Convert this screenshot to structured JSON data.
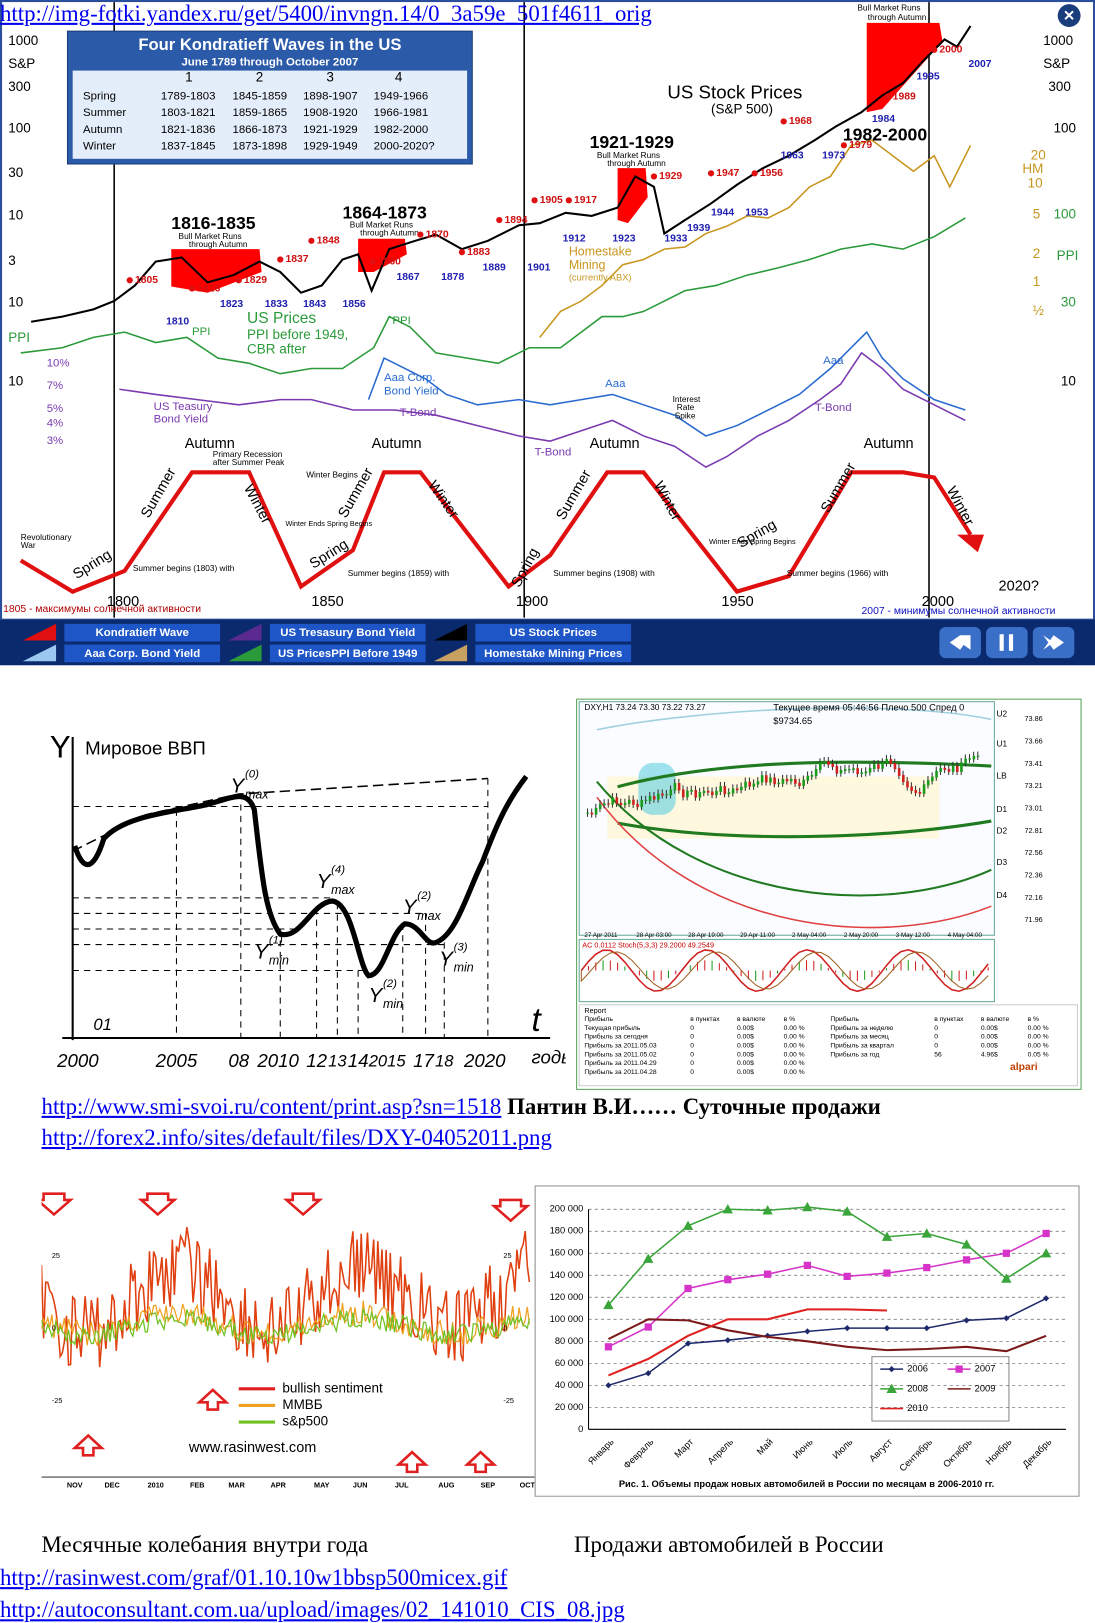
{
  "kondratieff": {
    "title": "Four Kondratieff Waves in the US",
    "subtitle": "June 1789 through October 2007",
    "columns": [
      "1",
      "2",
      "3",
      "4"
    ],
    "rows": [
      [
        "Spring",
        "1789-1803",
        "1845-1859",
        "1898-1907",
        "1949-1966"
      ],
      [
        "Summer",
        "1803-1821",
        "1859-1865",
        "1908-1920",
        "1966-1981"
      ],
      [
        "Autumn",
        "1821-1836",
        "1866-1873",
        "1921-1929",
        "1982-2000"
      ],
      [
        "Winter",
        "1837-1845",
        "1873-1898",
        "1929-1949",
        "2000-2020?"
      ]
    ],
    "labels": [
      "1000",
      "S&P",
      "300",
      "100",
      "30",
      "10",
      "3",
      "10",
      "PPI",
      "10",
      "10%",
      "7%",
      "5%",
      "4%",
      "3%",
      "1000",
      "S&P",
      "300",
      "100",
      "20",
      "HM",
      "10",
      "5",
      "100",
      "2",
      "PPI",
      "1",
      "½",
      "30",
      "10",
      "US Stock Prices",
      "(S&P 500)",
      "1816-1835",
      "1864-1873",
      "1921-1929",
      "1982-2000",
      "Bull Market Runs",
      "through Autumn",
      "Bull Market Runs",
      "through Autumn",
      "Bull Market Runs",
      "through Autumn",
      "Bull Market Runs",
      "through Autumn",
      "Homestake",
      "Mining",
      "(currently ABX)",
      "US Prices",
      "PPI before 1949,",
      "CBR after",
      "PPI",
      "PPI",
      "Aaa Corp.",
      "Bond Yield",
      "US Teasury",
      "Bond Yield",
      "T-Bond",
      "T-Bond",
      "T-Bond",
      "Aaa",
      "Aaa",
      "Interest",
      "Rate",
      "Spike",
      "Autumn",
      "Autumn",
      "Autumn",
      "Autumn",
      "Summer",
      "Summer",
      "Summer",
      "Summer",
      "Winter",
      "Winter",
      "Winter",
      "Winter",
      "Spring",
      "Spring",
      "Spring",
      "Spring",
      "Revolutionary",
      "War",
      "1800",
      "1850",
      "1900",
      "1950",
      "2000",
      "2020?",
      "1805 - максимумы солнечной активности",
      "2007 - минимумы солнечной активности",
      "Primary Recession",
      "after Summer Peak",
      "Winter Begins",
      "Summer begins (1803) with",
      "Summer begins (1859) with",
      "Summer begins (1908) with",
      "Summer begins (1966) with",
      "Winter Ends Spring Begins",
      "Winter Ends Spring Begins"
    ],
    "peak_years": [
      "1805",
      "1816",
      "1829",
      "1837",
      "1848",
      "1860",
      "1870",
      "1883",
      "1894",
      "1905",
      "1917",
      "1929",
      "1947",
      "1956",
      "1968",
      "1979",
      "1989",
      "2000"
    ],
    "trough_years": [
      "1810",
      "1823",
      "1833",
      "1843",
      "1856",
      "1867",
      "1878",
      "1889",
      "1901",
      "1912",
      "1923",
      "1933",
      "1939",
      "1944",
      "1953",
      "1963",
      "1973",
      "1984",
      "1995",
      "2007"
    ],
    "legend": [
      "Kondratieff Wave",
      "US Tresasury Bond Yield",
      "US Stock Prices",
      "Aaa Corp. Bond Yield",
      "US PricesPPI Before 1949",
      "Homestake Mining Prices"
    ]
  },
  "link_1": "http://img-fotki.yandex.ru/get/5400/invngn.14/0_3a59e_501f4611_orig",
  "gdp_chart": {
    "y_axis": "Y",
    "title": "Мировое ВВП",
    "t_axis": "t",
    "t_unit": "годы",
    "first": "01",
    "ticks": [
      "2000",
      "2005",
      "08",
      "2010",
      "12",
      "13",
      "14",
      "2015",
      "17",
      "18",
      "2020"
    ],
    "points": [
      {
        "main": "Y",
        "sub": "max",
        "sup": "(0)"
      },
      {
        "main": "Y",
        "sub": "max",
        "sup": "(4)"
      },
      {
        "main": "Y",
        "sub": "min",
        "sup": "(1)"
      },
      {
        "main": "Y",
        "sub": "min",
        "sup": "(2)"
      },
      {
        "main": "Y",
        "sub": "max",
        "sup": "(2)"
      },
      {
        "main": "Y",
        "sub": "min",
        "sup": "(3)"
      }
    ]
  },
  "forex": {
    "header": "DXY,H1 73.24 73.30 73.22 73.27",
    "status": "Текущее время 05:46:56 Плечо 500 Спред 0",
    "balance": "$9734.65",
    "prices": [
      "73.86",
      "73.66",
      "73.41",
      "73.21",
      "73.01",
      "72.81",
      "72.56",
      "72.36",
      "72.16",
      "71.96"
    ],
    "levels": [
      "U2",
      "U1",
      "LB",
      "D1",
      "D2",
      "D3",
      "D4"
    ],
    "indicator": "AC 0.0112 Stoch(5,3,3) 29.2000 49.2549",
    "times": [
      "27 Apr 2011",
      "28 Apr 03:00",
      "28 Apr 19:00",
      "29 Apr 11:00",
      "2 May 04:00",
      "2 May 20:00",
      "3 May 12:00",
      "4 May 04:00"
    ],
    "report_title": "Report",
    "report_left": [
      [
        "Прибыль",
        "в пунктах",
        "в валюте",
        "в %"
      ],
      [
        "Текущая прибыль",
        "0",
        "0.00$",
        "0.00 %"
      ],
      [
        "Прибыль за сегодня",
        "0",
        "0.00$",
        "0.00 %"
      ],
      [
        "Прибыль за 2011.05.03",
        "0",
        "0.00$",
        "0.00 %"
      ],
      [
        "Прибыль за 2011.05.02",
        "0",
        "0.00$",
        "0.00 %"
      ],
      [
        "Прибыль за 2011.04.29",
        "0",
        "0.00$",
        "0.00 %"
      ],
      [
        "Прибыль за 2011.04.28",
        "0",
        "0.00$",
        "0.00 %"
      ]
    ],
    "report_right": [
      [
        "Прибыль",
        "в пунктах",
        "в валюте",
        "в %"
      ],
      [
        "Прибыль за неделю",
        "0",
        "0.00$",
        "0.00 %"
      ],
      [
        "Прибыль за месяц",
        "0",
        "0.00$",
        "0.00 %"
      ],
      [
        "Прибыль за квартал",
        "0",
        "0.00$",
        "0.00 %"
      ],
      [
        "Прибыль за год",
        "56",
        "4.96$",
        "0.05 %"
      ]
    ],
    "brand": "alpari"
  },
  "link_2": "http://www.smi-svoi.ru/content/print.asp?sn=1518",
  "caption_2": " Пантин В.И…… Суточные продажи",
  "link_3": "http://forex2.info/sites/default/files/DXY-04052011.png",
  "sentiment_chart": {
    "months": [
      "NOV",
      "DEC",
      "2010",
      "FEB",
      "MAR",
      "APR",
      "MAY",
      "JUN",
      "JUL",
      "AUG",
      "SEP",
      "OCT"
    ],
    "left_ticks": [
      "25",
      "0",
      "-25"
    ],
    "right_ticks": [
      "25",
      "0",
      "-25"
    ],
    "legend": [
      "bullish sentiment",
      "ММВБ",
      "s&p500"
    ],
    "site": "www.rasinwest.com"
  },
  "chart_data": {
    "type": "line",
    "caption": "Рис. 1. Объемы продаж новых автомобилей в России по месяцам в 2006-2010 гг.",
    "categories": [
      "Январь",
      "Февраль",
      "Март",
      "Апрель",
      "Май",
      "Июнь",
      "Июль",
      "Август",
      "Сентябрь",
      "Октябрь",
      "Ноябрь",
      "Декабрь"
    ],
    "series": [
      {
        "name": "2006",
        "color": "#1f2a6b",
        "marker": "diamond",
        "values": [
          40000,
          51000,
          78000,
          81000,
          85000,
          89000,
          92000,
          92000,
          92000,
          99000,
          101000,
          119000
        ]
      },
      {
        "name": "2007",
        "color": "#d633c8",
        "marker": "square",
        "values": [
          75000,
          93000,
          128000,
          136000,
          141000,
          149000,
          139000,
          142000,
          147000,
          154000,
          160000,
          178000
        ]
      },
      {
        "name": "2008",
        "color": "#3aa53a",
        "marker": "triangle",
        "values": [
          113000,
          155000,
          185000,
          200000,
          199000,
          202000,
          198000,
          175000,
          178000,
          168000,
          137000,
          160000
        ]
      },
      {
        "name": "2009",
        "color": "#7b1a1a",
        "marker": "none",
        "values": [
          82000,
          100000,
          99000,
          90000,
          84000,
          80000,
          75000,
          72000,
          73000,
          75000,
          71000,
          85000
        ]
      },
      {
        "name": "2010",
        "color": "#e02020",
        "marker": "none",
        "values": [
          49000,
          64000,
          85000,
          100000,
          100000,
          109000,
          109000,
          108000,
          null,
          null,
          null,
          null
        ]
      }
    ],
    "ylim": [
      0,
      200000
    ],
    "yticks": [
      0,
      {
        "value": 20000,
        "label": "20 000"
      },
      {
        "value": 40000,
        "label": "40 000"
      },
      {
        "value": 60000,
        "label": "60 000"
      },
      {
        "value": 80000,
        "label": "80 000"
      },
      {
        "value": 100000,
        "label": "100 000"
      },
      {
        "value": 120000,
        "label": "120 000"
      },
      {
        "value": 140000,
        "label": "140 000"
      },
      {
        "value": 160000,
        "label": "160 000"
      },
      {
        "value": 180000,
        "label": "180 000"
      },
      {
        "value": 200000,
        "label": "200 000"
      }
    ],
    "grid": true
  },
  "caption_left": "Месячные колебания внутри года",
  "caption_right": "Продажи автомобилей в России",
  "link_4": "http://rasinwest.com/graf/01.10.10w1bbsp500micex.gif",
  "link_5": "http://autoconsultant.com.ua/upload/images/02_141010_CIS_08.jpg"
}
